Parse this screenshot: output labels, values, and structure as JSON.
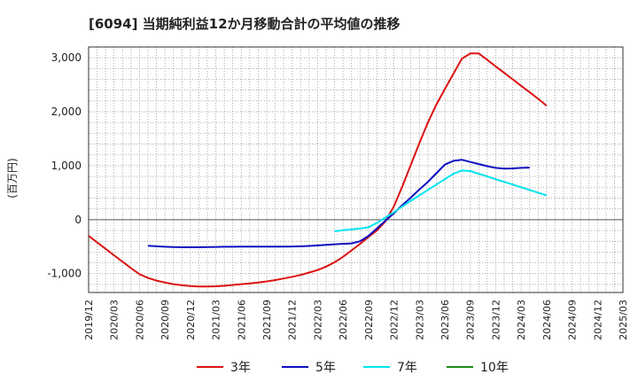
{
  "chart_data": {
    "type": "line",
    "title": "[6094]  当期純利益12か月移動合計の平均値の推移",
    "ylabel": "(百万円)",
    "xlabel": "",
    "ylim": [
      -1350,
      3200
    ],
    "y_ticks": [
      -1000,
      0,
      1000,
      2000,
      3000
    ],
    "y_tick_labels": [
      "-1,000",
      "0",
      "1,000",
      "2,000",
      "3,000"
    ],
    "x_tick_labels": [
      "2019/12",
      "2020/03",
      "2020/06",
      "2020/09",
      "2020/12",
      "2021/03",
      "2021/06",
      "2021/09",
      "2021/12",
      "2022/03",
      "2022/06",
      "2022/09",
      "2022/12",
      "2023/03",
      "2023/06",
      "2023/09",
      "2023/12",
      "2024/03",
      "2024/06",
      "2024/09",
      "2024/12",
      "2025/03"
    ],
    "grid": true,
    "legend_position": "bottom",
    "series": [
      {
        "name": "3年",
        "color": "#dd1111",
        "start_index": 0,
        "values": [
          -300,
          -420,
          -540,
          -660,
          -780,
          -900,
          -1010,
          -1080,
          -1130,
          -1165,
          -1195,
          -1215,
          -1230,
          -1240,
          -1240,
          -1235,
          -1225,
          -1210,
          -1195,
          -1180,
          -1165,
          -1145,
          -1120,
          -1090,
          -1060,
          -1025,
          -980,
          -935,
          -870,
          -790,
          -690,
          -570,
          -450,
          -320,
          -200,
          -30,
          250,
          620,
          1020,
          1420,
          1800,
          2130,
          2420,
          2700,
          2980,
          3080,
          3080,
          2960,
          2840,
          2720,
          2600,
          2480,
          2360,
          2240,
          2110
        ]
      },
      {
        "name": "5年",
        "color": "#0f0fc0",
        "start_index": 7,
        "values": [
          -485,
          -495,
          -502,
          -507,
          -510,
          -510,
          -510,
          -508,
          -505,
          -503,
          -502,
          -500,
          -500,
          -500,
          -500,
          -500,
          -500,
          -498,
          -494,
          -487,
          -478,
          -467,
          -457,
          -448,
          -440,
          -400,
          -300,
          -160,
          -20,
          120,
          270,
          410,
          560,
          700,
          860,
          1020,
          1090,
          1110,
          1070,
          1030,
          990,
          960,
          945,
          950,
          960,
          965
        ]
      },
      {
        "name": "7年",
        "color": "#00e5ee",
        "start_index": 29,
        "values": [
          -215,
          -195,
          -180,
          -165,
          -140,
          -60,
          40,
          140,
          245,
          350,
          450,
          550,
          650,
          750,
          850,
          910,
          900,
          850,
          800,
          750,
          700,
          650,
          600,
          550,
          500,
          450
        ]
      },
      {
        "name": "10年",
        "color": "#1a8a1a",
        "start_index": 0,
        "values": []
      }
    ]
  }
}
